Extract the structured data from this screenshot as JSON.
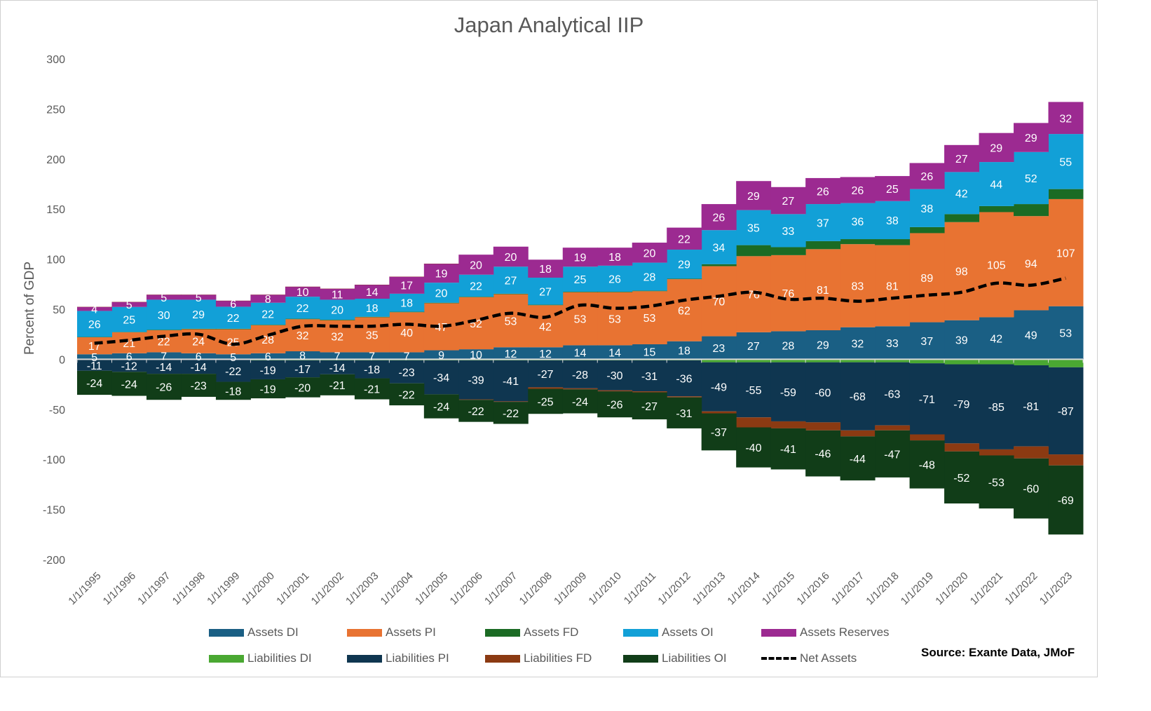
{
  "chart_data": {
    "type": "bar",
    "stacked": true,
    "title": "Japan Analytical IIP",
    "xlabel": "",
    "ylabel": "Percent of GDP",
    "ylim": [
      -200,
      300
    ],
    "yticks": [
      300,
      250,
      200,
      150,
      100,
      50,
      0,
      -50,
      -100,
      -150,
      -200
    ],
    "categories": [
      "1/1/1995",
      "1/1/1996",
      "1/1/1997",
      "1/1/1998",
      "1/1/1999",
      "1/1/2000",
      "1/1/2001",
      "1/1/2002",
      "1/1/2003",
      "1/1/2004",
      "1/1/2005",
      "1/1/2006",
      "1/1/2007",
      "1/1/2008",
      "1/1/2009",
      "1/1/2010",
      "1/1/2011",
      "1/1/2012",
      "1/1/2013",
      "1/1/2014",
      "1/1/2015",
      "1/1/2016",
      "1/1/2017",
      "1/1/2018",
      "1/1/2019",
      "1/1/2020",
      "1/1/2021",
      "1/1/2022",
      "1/1/2023"
    ],
    "series": [
      {
        "name": "Assets DI",
        "color": "#1a5f84",
        "labels": true,
        "values": [
          5,
          6,
          7,
          6,
          5,
          6,
          8,
          7,
          7,
          7,
          9,
          10,
          12,
          12,
          14,
          14,
          15,
          18,
          23,
          27,
          28,
          29,
          32,
          33,
          37,
          39,
          42,
          49,
          53
        ]
      },
      {
        "name": "Assets PI",
        "color": "#e87332",
        "labels": true,
        "values": [
          17,
          21,
          22,
          24,
          25,
          28,
          32,
          32,
          35,
          40,
          47,
          52,
          53,
          42,
          53,
          53,
          53,
          62,
          70,
          76,
          76,
          81,
          83,
          81,
          89,
          98,
          105,
          94,
          107
        ]
      },
      {
        "name": "Assets FD",
        "color": "#1b6b24",
        "labels": false,
        "values": [
          0.3,
          0.3,
          0.5,
          0.5,
          0.5,
          0.5,
          0.5,
          0.5,
          0.5,
          0.5,
          0.5,
          0.5,
          0.5,
          0.5,
          0.5,
          0.5,
          0.5,
          0.5,
          2,
          11,
          8,
          8,
          5,
          6,
          6,
          8,
          6,
          12,
          10
        ]
      },
      {
        "name": "Assets OI",
        "color": "#12a0d7",
        "labels": true,
        "values": [
          26,
          25,
          30,
          29,
          22,
          22,
          22,
          20,
          18,
          18,
          20,
          22,
          27,
          27,
          25,
          26,
          28,
          29,
          34,
          35,
          33,
          37,
          36,
          38,
          38,
          42,
          44,
          52,
          55
        ]
      },
      {
        "name": "Assets Reserves",
        "color": "#9c2a91",
        "labels": true,
        "values": [
          4,
          5,
          5,
          5,
          6,
          8,
          10,
          11,
          14,
          17,
          19,
          20,
          20,
          18,
          19,
          18,
          20,
          22,
          26,
          29,
          27,
          26,
          26,
          25,
          26,
          27,
          29,
          29,
          32
        ]
      },
      {
        "name": "Liabilities DI",
        "color": "#4aa832",
        "labels": false,
        "values": [
          -0.5,
          -0.5,
          -0.5,
          -0.5,
          -0.5,
          -1,
          -1,
          -1,
          -1,
          -1,
          -1,
          -1,
          -1,
          -1,
          -1,
          -1,
          -1,
          -1,
          -3,
          -3,
          -3,
          -3,
          -3,
          -3,
          -4,
          -5,
          -5,
          -6,
          -8
        ]
      },
      {
        "name": "Liabilities PI",
        "color": "#0f3650",
        "labels": true,
        "values": [
          -11,
          -12,
          -14,
          -14,
          -22,
          -19,
          -17,
          -14,
          -18,
          -23,
          -34,
          -39,
          -41,
          -27,
          -28,
          -30,
          -31,
          -36,
          -49,
          -55,
          -59,
          -60,
          -68,
          -63,
          -71,
          -79,
          -85,
          -81,
          -87
        ]
      },
      {
        "name": "Liabilities FD",
        "color": "#8b3a12",
        "labels": false,
        "values": [
          0,
          0,
          0,
          0,
          0,
          0,
          0,
          0,
          0,
          0,
          0,
          -0.5,
          -0.5,
          -1.5,
          -1,
          -1,
          -1,
          -1,
          -2,
          -10,
          -7,
          -8,
          -6,
          -5,
          -6,
          -8,
          -6,
          -12,
          -11
        ]
      },
      {
        "name": "Liabilities OI",
        "color": "#113d18",
        "labels": true,
        "values": [
          -24,
          -24,
          -26,
          -23,
          -18,
          -19,
          -20,
          -21,
          -21,
          -22,
          -24,
          -22,
          -22,
          -25,
          -24,
          -26,
          -27,
          -31,
          -37,
          -40,
          -41,
          -46,
          -44,
          -47,
          -48,
          -52,
          -53,
          -60,
          -69
        ]
      }
    ],
    "line": {
      "name": "Net Assets",
      "color": "#000000",
      "style": "dashed",
      "values": [
        16,
        19,
        23,
        25,
        15,
        24,
        33,
        33,
        33,
        35,
        33,
        39,
        46,
        42,
        54,
        51,
        53,
        59,
        63,
        67,
        60,
        61,
        58,
        61,
        64,
        67,
        76,
        74,
        81
      ]
    },
    "legend": {
      "position": "bottom"
    },
    "grid": false,
    "source": "Source: Exante Data, JMoF"
  }
}
